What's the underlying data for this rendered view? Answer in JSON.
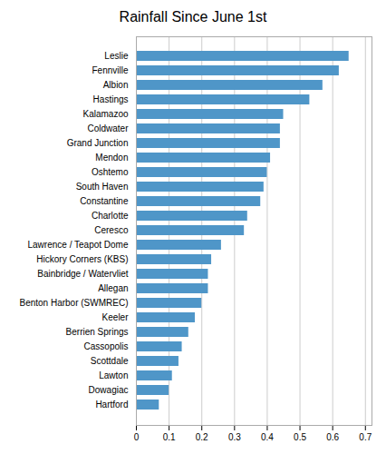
{
  "chart_data": {
    "type": "bar",
    "orientation": "horizontal",
    "title": "Rainfall Since June 1st",
    "categories": [
      "Hartford",
      "Dowagiac",
      "Lawton",
      "Scottdale",
      "Cassopolis",
      "Berrien Springs",
      "Keeler",
      "Benton Harbor (SWMREC)",
      "Allegan",
      "Bainbridge / Watervliet",
      "Hickory Corners (KBS)",
      "Lawrence / Teapot Dome",
      "Ceresco",
      "Charlotte",
      "Constantine",
      "South Haven",
      "Oshtemo",
      "Mendon",
      "Grand Junction",
      "Coldwater",
      "Kalamazoo",
      "Hastings",
      "Albion",
      "Fennville",
      "Leslie"
    ],
    "values": [
      0.07,
      0.1,
      0.11,
      0.13,
      0.14,
      0.16,
      0.18,
      0.2,
      0.22,
      0.22,
      0.23,
      0.26,
      0.33,
      0.34,
      0.38,
      0.39,
      0.4,
      0.41,
      0.44,
      0.44,
      0.45,
      0.53,
      0.57,
      0.62,
      0.65
    ],
    "color": "#4f96c8",
    "xlim": [
      0,
      0.72
    ],
    "xticks": [
      0,
      0.1,
      0.2,
      0.3,
      0.4,
      0.5,
      0.6,
      0.7
    ],
    "grid": true
  }
}
